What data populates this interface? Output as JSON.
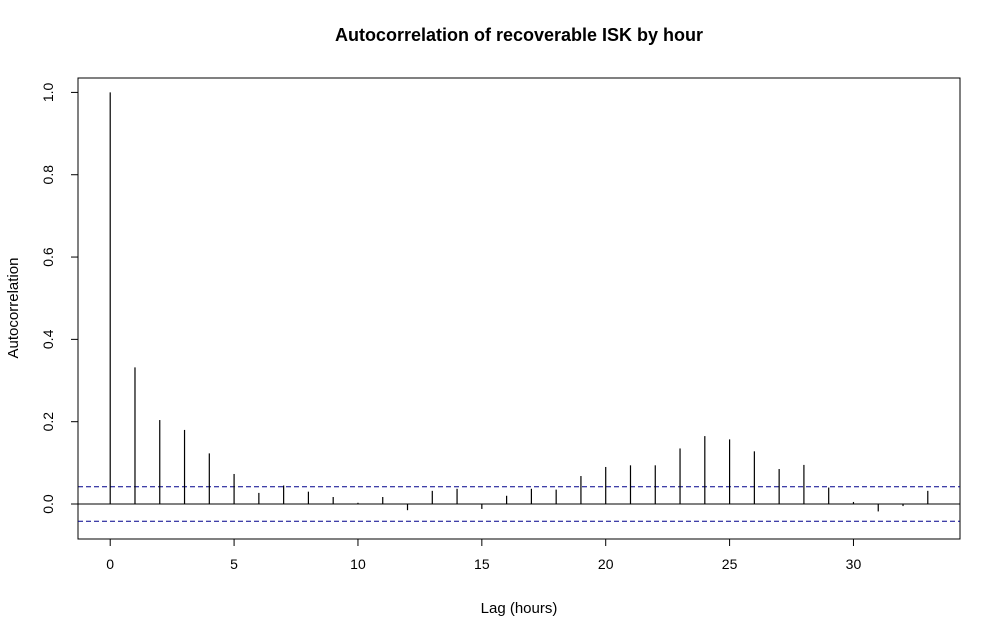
{
  "chart_data": {
    "type": "bar",
    "subtype": "acf-lollipop",
    "title": "Autocorrelation of recoverable ISK by hour",
    "xlabel": "Lag (hours)",
    "ylabel": "Autocorrelation",
    "xlim": [
      -1.3,
      34.3
    ],
    "ylim": [
      -0.085,
      1.035
    ],
    "x_ticks": [
      0,
      5,
      10,
      15,
      20,
      25,
      30
    ],
    "y_ticks": [
      0.0,
      0.2,
      0.4,
      0.6,
      0.8,
      1.0
    ],
    "y_tick_labels": [
      "0.0",
      "0.2",
      "0.4",
      "0.6",
      "0.8",
      "1.0"
    ],
    "grid": false,
    "legend": "none",
    "confidence_band": 0.042,
    "lags": [
      0,
      1,
      2,
      3,
      4,
      5,
      6,
      7,
      8,
      9,
      10,
      11,
      12,
      13,
      14,
      15,
      16,
      17,
      18,
      19,
      20,
      21,
      22,
      23,
      24,
      25,
      26,
      27,
      28,
      29,
      30,
      31,
      32,
      33
    ],
    "values": [
      1.0,
      0.332,
      0.204,
      0.18,
      0.123,
      0.073,
      0.027,
      0.045,
      0.03,
      0.017,
      0.003,
      0.017,
      -0.015,
      0.032,
      0.037,
      -0.012,
      0.02,
      0.037,
      0.035,
      0.068,
      0.09,
      0.094,
      0.094,
      0.135,
      0.165,
      0.157,
      0.128,
      0.085,
      0.095,
      0.04,
      0.005,
      -0.018,
      -0.005,
      0.032
    ],
    "colors": {
      "spike": "#000000",
      "band": "#00008b",
      "zero": "#000000"
    }
  }
}
